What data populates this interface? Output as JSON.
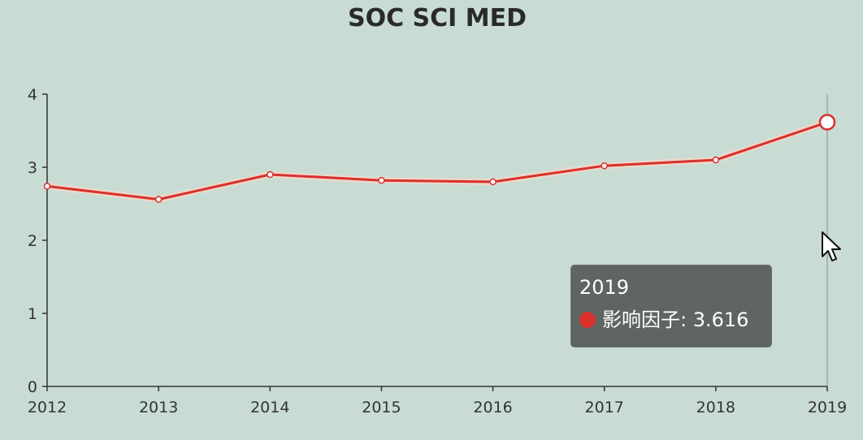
{
  "chart_data": {
    "type": "line",
    "title": "SOC SCI MED",
    "xlabel": "",
    "ylabel": "",
    "categories": [
      "2012",
      "2013",
      "2014",
      "2015",
      "2016",
      "2017",
      "2018",
      "2019"
    ],
    "yticks": [
      "0",
      "1",
      "2",
      "3",
      "4"
    ],
    "ylim": [
      0,
      4
    ],
    "grid": false,
    "series": [
      {
        "name": "影响因子",
        "color": "#d9302a",
        "values": [
          2.74,
          2.56,
          2.9,
          2.82,
          2.8,
          3.02,
          3.1,
          3.616
        ]
      }
    ]
  },
  "tooltip": {
    "title": "2019",
    "series_label": "影响因子: 3.616",
    "color": "#d9302a"
  },
  "hover_index": 7
}
